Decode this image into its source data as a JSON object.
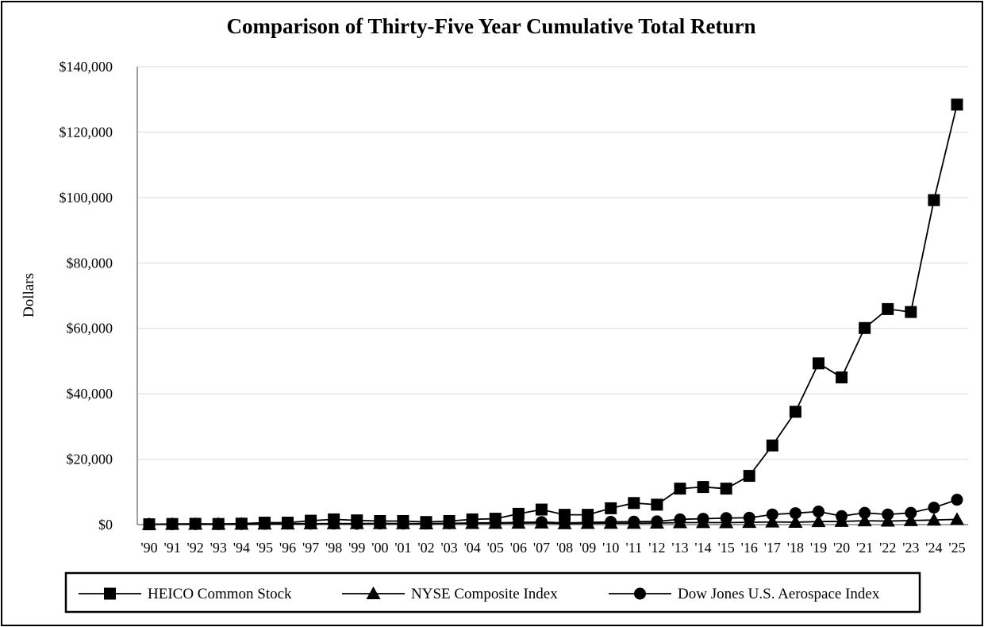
{
  "chart_data": {
    "type": "line",
    "title": "Comparison of Thirty-Five Year Cumulative Total Return",
    "xlabel": "",
    "ylabel": "Dollars",
    "ylim": [
      0,
      140000
    ],
    "y_ticks": [
      0,
      20000,
      40000,
      60000,
      80000,
      100000,
      120000,
      140000
    ],
    "y_tick_labels": [
      "$0",
      "$20,000",
      "$40,000",
      "$60,000",
      "$80,000",
      "$100,000",
      "$120,000",
      "$140,000"
    ],
    "grid": true,
    "legend_position": "bottom",
    "categories": [
      "'90",
      "'91",
      "'92",
      "'93",
      "'94",
      "'95",
      "'96",
      "'97",
      "'98",
      "'99",
      "'00",
      "'01",
      "'02",
      "'03",
      "'04",
      "'05",
      "'06",
      "'07",
      "'08",
      "'09",
      "'10",
      "'11",
      "'12",
      "'13",
      "'14",
      "'15",
      "'16",
      "'17",
      "'18",
      "'19",
      "'20",
      "'21",
      "'22",
      "'23",
      "'24",
      "'25"
    ],
    "series": [
      {
        "name": "HEICO Common Stock",
        "marker": "square",
        "values": [
          100,
          200,
          250,
          200,
          300,
          600,
          600,
          1200,
          1600,
          1300,
          1100,
          1100,
          800,
          1100,
          1600,
          1800,
          3300,
          4600,
          3000,
          3000,
          5000,
          6600,
          6100,
          11000,
          11500,
          11000,
          14900,
          24200,
          34500,
          49300,
          45000,
          60100,
          65900,
          65000,
          99200,
          128400
        ]
      },
      {
        "name": "NYSE Composite Index",
        "marker": "triangle",
        "values": [
          100,
          120,
          130,
          140,
          140,
          180,
          210,
          260,
          300,
          330,
          330,
          300,
          250,
          330,
          370,
          400,
          470,
          510,
          300,
          380,
          430,
          420,
          480,
          600,
          640,
          610,
          690,
          820,
          740,
          930,
          990,
          1190,
          1080,
          1240,
          1410,
          1600
        ]
      },
      {
        "name": "Dow Jones U.S. Aerospace Index",
        "marker": "circle",
        "values": [
          100,
          110,
          120,
          130,
          150,
          220,
          290,
          280,
          300,
          250,
          320,
          300,
          300,
          400,
          500,
          560,
          660,
          800,
          500,
          650,
          850,
          900,
          1000,
          1600,
          1800,
          2000,
          2100,
          3100,
          3500,
          4000,
          2600,
          3600,
          3100,
          3600,
          5200,
          7600
        ]
      }
    ]
  }
}
